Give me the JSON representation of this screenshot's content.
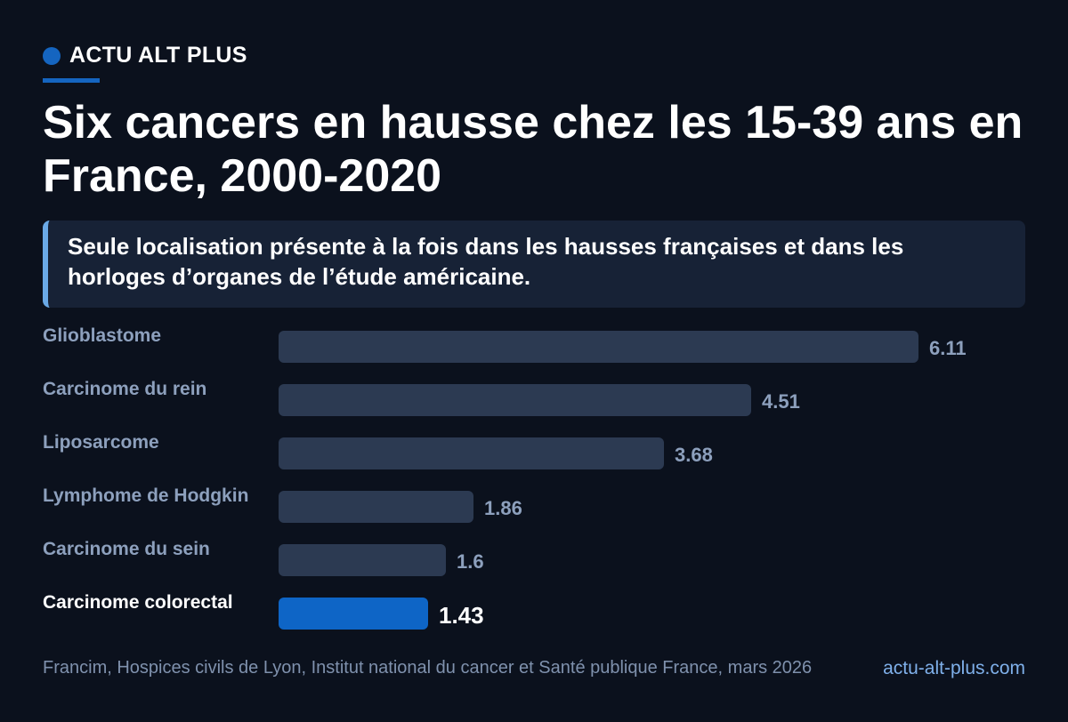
{
  "brand": {
    "name": "ACTU ALT PLUS"
  },
  "title": "Six cancers en hausse chez les 15-39 ans en France, 2000-2020",
  "callout": "Seule localisation présente à la fois dans les hausses françaises et dans les horloges d’organes de l’étude américaine.",
  "chart_data": {
    "type": "bar",
    "orientation": "horizontal",
    "categories": [
      "Glioblastome",
      "Carcinome du rein",
      "Liposarcome",
      "Lymphome de Hodgkin",
      "Carcinome du sein",
      "Carcinome colorectal"
    ],
    "values": [
      6.11,
      4.51,
      3.68,
      1.86,
      1.6,
      1.43
    ],
    "value_labels": [
      "6.11",
      "4.51",
      "3.68",
      "1.86",
      "1.6",
      "1.43"
    ],
    "highlight_index": 5,
    "xlim": [
      0,
      6.11
    ],
    "grid": false,
    "colors": {
      "bar": "#2c3a52",
      "highlight": "#0e65c6"
    }
  },
  "footer": {
    "source": "Francim, Hospices civils de Lyon, Institut national du cancer et Santé publique France, mars 2026",
    "site": "actu-alt-plus.com"
  }
}
